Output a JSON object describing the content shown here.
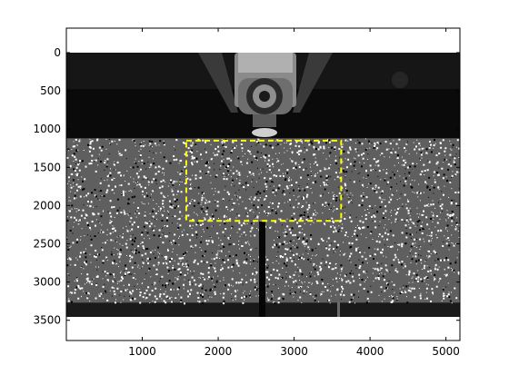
{
  "image": {
    "kind": "grayscale-specimen-photo-with-dic-speckle",
    "x_range": [
      0,
      5184
    ],
    "y_range": [
      0,
      3456
    ],
    "specimen_rows": [
      1120,
      3270
    ],
    "notch_x": 2590,
    "roi": {
      "x0": 1580,
      "x1": 3620,
      "y0": 1150,
      "y1": 2200,
      "color": "#ffff00",
      "style": "dashed"
    },
    "colors": {
      "background": "#000000",
      "speckle": "#ffffff",
      "specimen_base": "#5f5f5f",
      "axis": "#000000"
    }
  },
  "axes": {
    "x_ticks": [
      {
        "value": 1000,
        "label": "1000"
      },
      {
        "value": 2000,
        "label": "2000"
      },
      {
        "value": 3000,
        "label": "3000"
      },
      {
        "value": 4000,
        "label": "4000"
      },
      {
        "value": 5000,
        "label": "5000"
      }
    ],
    "y_ticks": [
      {
        "value": 0,
        "label": "0"
      },
      {
        "value": 500,
        "label": "500"
      },
      {
        "value": 1000,
        "label": "1000"
      },
      {
        "value": 1500,
        "label": "1500"
      },
      {
        "value": 2000,
        "label": "2000"
      },
      {
        "value": 2500,
        "label": "2500"
      },
      {
        "value": 3000,
        "label": "3000"
      },
      {
        "value": 3500,
        "label": "3500"
      }
    ]
  }
}
